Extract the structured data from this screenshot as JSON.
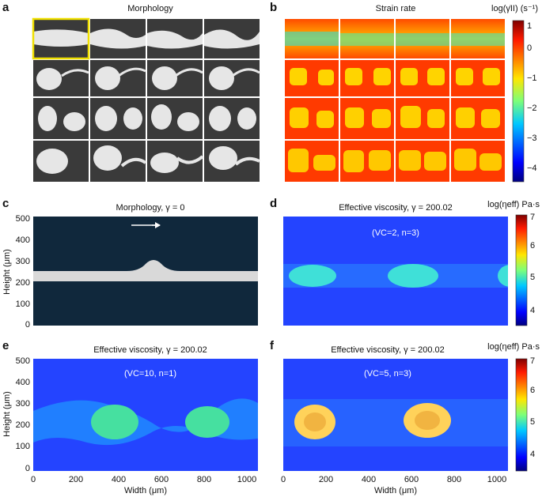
{
  "panels": {
    "a": {
      "letter": "a",
      "title": "Morphology"
    },
    "b": {
      "letter": "b",
      "title": "Strain rate",
      "cbar_label": "log(γ̇II) (s⁻¹)",
      "cbar_ticks": [
        "1",
        "0",
        "−1",
        "−2",
        "−3",
        "−4"
      ]
    },
    "c": {
      "letter": "c",
      "title": "Morphology, γ = 0",
      "ylabel": "Height (μm)",
      "yticks": [
        "500",
        "400",
        "300",
        "200",
        "100",
        "0"
      ]
    },
    "d": {
      "letter": "d",
      "title": "Effective viscosity, γ = 200.02",
      "annotation": "(VC=2, n=3)",
      "cbar_label": "log(ηeff) Pa·s",
      "cbar_ticks": [
        "7",
        "6",
        "5",
        "4"
      ]
    },
    "e": {
      "letter": "e",
      "title": "Effective viscosity, γ = 200.02",
      "annotation": "(VC=10, n=1)",
      "ylabel": "Height (μm)",
      "xlabel": "Width (μm)",
      "yticks": [
        "500",
        "400",
        "300",
        "200",
        "100",
        "0"
      ],
      "xticks": [
        "0",
        "200",
        "400",
        "600",
        "800",
        "1000"
      ]
    },
    "f": {
      "letter": "f",
      "title": "Effective viscosity, γ = 200.02",
      "annotation": "(VC=5, n=3)",
      "xlabel": "Width (μm)",
      "xticks": [
        "0",
        "200",
        "400",
        "600",
        "800",
        "1000"
      ],
      "cbar_label": "log(ηeff) Pa·s",
      "cbar_ticks": [
        "7",
        "6",
        "5",
        "4"
      ]
    }
  },
  "colors": {
    "dark_matrix": "#10283c",
    "light_phase": "#d9d9d9",
    "jet_blue": "#1f3cff",
    "jet_red": "#ff2a00"
  }
}
